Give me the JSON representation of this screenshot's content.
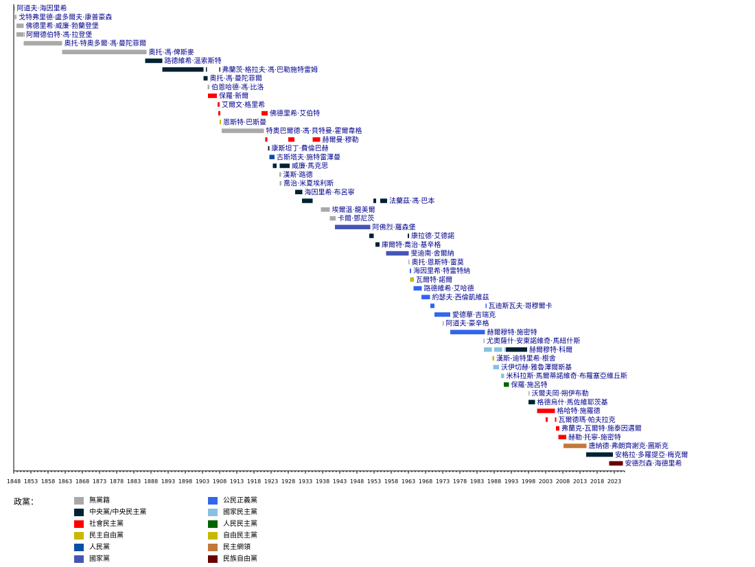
{
  "legend_title": "政黨：",
  "parties": {
    "none": {
      "label": "無黨籍",
      "color": "#a9a9a9"
    },
    "cen": {
      "label": "中央黨/中央民主黨",
      "color": "#002233"
    },
    "sp": {
      "label": "社會民主黨",
      "color": "#ff0000"
    },
    "dfp": {
      "label": "民主自由黨",
      "color": "#c8b900"
    },
    "volk": {
      "label": "人民黨",
      "color": "#0a4fa3"
    },
    "nat": {
      "label": "國家黨",
      "color": "#4655b5"
    },
    "cvp": {
      "label": "公民正義黨",
      "color": "#3366ee"
    },
    "bdp": {
      "label": "國家民主黨",
      "color": "#87c1e3"
    },
    "vp": {
      "label": "人民民主黨",
      "color": "#006400"
    },
    "fdp": {
      "label": "自由民主黨",
      "color": "#c8b900"
    },
    "du": {
      "label": "民主網領",
      "color": "#c1783b"
    },
    "dpl": {
      "label": "民族自由黨",
      "color": "#6b0000"
    }
  },
  "legend_order": [
    "none",
    "cen",
    "sp",
    "dfp",
    "volk",
    "nat",
    "cvp",
    "bdp",
    "vp",
    "fdp",
    "du",
    "dpl"
  ],
  "chart_data": {
    "type": "timeline",
    "x_axis": {
      "min": 1848,
      "max": 2026,
      "tick_start": 1848,
      "tick_step": 5,
      "tick_end": 2023
    },
    "rows": [
      {
        "label": "阿道夫·海因里希",
        "segments": [
          {
            "start": 1848,
            "end": 1848.3,
            "party": "none"
          }
        ]
      },
      {
        "label": "戈特弗里德·盧多爾夫·康普豪森",
        "segments": [
          {
            "start": 1848.3,
            "end": 1848.8,
            "party": "none"
          }
        ]
      },
      {
        "label": "佛德里希·威廉·勃蘭登堡",
        "segments": [
          {
            "start": 1848.8,
            "end": 1850.9,
            "party": "none"
          }
        ]
      },
      {
        "label": "阿爾德伯特·馮·拉登堡",
        "segments": [
          {
            "start": 1850.9,
            "end": 1851,
            "party": "none"
          },
          {
            "start": 1848.8,
            "end": 1850.8,
            "party": "none"
          }
        ]
      },
      {
        "label": "奧托·特奧多爾·馮·曼陀菲爾",
        "segments": [
          {
            "start": 1850.9,
            "end": 1862.1,
            "party": "none"
          }
        ]
      },
      {
        "label": "奧托·馮·俾斯麥",
        "segments": [
          {
            "start": 1862.1,
            "end": 1886.7,
            "party": "none"
          }
        ]
      },
      {
        "label": "路德維希·溫索斯特",
        "segments": [
          {
            "start": 1886.3,
            "end": 1891.3,
            "party": "cen"
          }
        ]
      },
      {
        "label": "弗蘭茨·格拉夫·馮·巴勒施特雷姆",
        "segments": [
          {
            "start": 1891.3,
            "end": 1903.3,
            "party": "cen"
          },
          {
            "start": 1904.0,
            "end": 1904.2,
            "party": "cen"
          },
          {
            "start": 1907.9,
            "end": 1908.1,
            "party": "cen"
          }
        ]
      },
      {
        "label": "奧托·馮·曼陀菲爾",
        "segments": [
          {
            "start": 1903.3,
            "end": 1904.5,
            "party": "cen"
          }
        ]
      },
      {
        "label": "伯恩哈德·馮·比洛",
        "segments": [
          {
            "start": 1904.5,
            "end": 1905.0,
            "party": "none"
          }
        ]
      },
      {
        "label": "保羅·新爾",
        "segments": [
          {
            "start": 1904.6,
            "end": 1907.2,
            "party": "sp"
          }
        ]
      },
      {
        "label": "艾爾文·格里希",
        "segments": [
          {
            "start": 1907.4,
            "end": 1908.0,
            "party": "sp"
          }
        ]
      },
      {
        "label": "佛德里希·艾伯特",
        "segments": [
          {
            "start": 1907.6,
            "end": 1908.2,
            "party": "sp"
          },
          {
            "start": 1920.2,
            "end": 1922.0,
            "party": "sp"
          }
        ]
      },
      {
        "label": "恩斯特·巴斯曼",
        "segments": [
          {
            "start": 1908.0,
            "end": 1908.4,
            "party": "dfp"
          }
        ]
      },
      {
        "label": "特奧巴爾德·馮·貝特曼-霍爾韋格",
        "segments": [
          {
            "start": 1908.6,
            "end": 1920.9,
            "party": "none"
          }
        ]
      },
      {
        "label": "赫爾曼·穆勒",
        "segments": [
          {
            "start": 1921.3,
            "end": 1921.9,
            "party": "sp"
          },
          {
            "start": 1928.0,
            "end": 1929.8,
            "party": "sp"
          },
          {
            "start": 1935.1,
            "end": 1937.3,
            "party": "sp"
          }
        ]
      },
      {
        "label": "康斯坦丁·費倫巴赫",
        "segments": [
          {
            "start": 1922.1,
            "end": 1922.5,
            "party": "cen"
          }
        ]
      },
      {
        "label": "古斯塔夫·施特雷澤曼",
        "segments": [
          {
            "start": 1922.5,
            "end": 1924.0,
            "party": "volk"
          }
        ]
      },
      {
        "label": "威廉·馬克思",
        "segments": [
          {
            "start": 1923.5,
            "end": 1924.6,
            "party": "cen"
          },
          {
            "start": 1925.5,
            "end": 1928.4,
            "party": "cen"
          }
        ]
      },
      {
        "label": "漢斯·路德",
        "segments": [
          {
            "start": 1925.4,
            "end": 1925.9,
            "party": "none"
          }
        ]
      },
      {
        "label": "喬治·米夏埃利斯",
        "segments": [
          {
            "start": 1925.5,
            "end": 1926.0,
            "party": "none"
          }
        ]
      },
      {
        "label": "海因里希·布呂寧",
        "segments": [
          {
            "start": 1930.0,
            "end": 1932.1,
            "party": "cen"
          }
        ]
      },
      {
        "label": "法蘭茲·馮·巴本",
        "segments": [
          {
            "start": 1932.0,
            "end": 1935.1,
            "party": "cen"
          },
          {
            "start": 1952.8,
            "end": 1953.6,
            "party": "cen"
          },
          {
            "start": 1954.8,
            "end": 1956.8,
            "party": "cen"
          }
        ]
      },
      {
        "label": "埃爾溫·龍美爾",
        "segments": [
          {
            "start": 1937.5,
            "end": 1940.1,
            "party": "none"
          }
        ]
      },
      {
        "label": "卡爾·鄧尼茨",
        "segments": [
          {
            "start": 1940.1,
            "end": 1941.8,
            "party": "none"
          }
        ]
      },
      {
        "label": "阿佛烈·羅森堡",
        "segments": [
          {
            "start": 1941.6,
            "end": 1951.9,
            "party": "nat"
          }
        ]
      },
      {
        "label": "康拉德·艾德諾",
        "segments": [
          {
            "start": 1951.6,
            "end": 1952.9,
            "party": "cen"
          },
          {
            "start": 1962.8,
            "end": 1963.2,
            "party": "cen"
          }
        ]
      },
      {
        "label": "庫爾特·喬治·基辛格",
        "segments": [
          {
            "start": 1953.4,
            "end": 1954.6,
            "party": "cen"
          }
        ]
      },
      {
        "label": "斐迪南·舍爾納",
        "segments": [
          {
            "start": 1956.5,
            "end": 1963.1,
            "party": "nat"
          }
        ]
      },
      {
        "label": "奧托·恩斯特·雷莫",
        "segments": [
          {
            "start": 1963.0,
            "end": 1963.3,
            "party": "none"
          }
        ]
      },
      {
        "label": "海因里希·特雷特納",
        "segments": [
          {
            "start": 1963.4,
            "end": 1963.8,
            "party": "cvp"
          }
        ]
      },
      {
        "label": "瓦爾特·諾爾",
        "segments": [
          {
            "start": 1963.5,
            "end": 1964.6,
            "party": "dfp"
          }
        ]
      },
      {
        "label": "路德維希·艾哈德",
        "segments": [
          {
            "start": 1964.5,
            "end": 1966.9,
            "party": "cvp"
          }
        ]
      },
      {
        "label": "約瑟夫·西倫凱維茲",
        "segments": [
          {
            "start": 1966.8,
            "end": 1969.3,
            "party": "cvp"
          }
        ]
      },
      {
        "label": "瓦迪斯瓦夫·哥穆爾卡",
        "segments": [
          {
            "start": 1969.4,
            "end": 1970.6,
            "party": "cvp"
          },
          {
            "start": 1985.5,
            "end": 1985.7,
            "party": "cvp"
          }
        ]
      },
      {
        "label": "愛德華·吉瑞克",
        "segments": [
          {
            "start": 1970.6,
            "end": 1975.2,
            "party": "cvp"
          }
        ]
      },
      {
        "label": "阿道夫·豪辛格",
        "segments": [
          {
            "start": 1973.0,
            "end": 1973.3,
            "party": "none"
          }
        ]
      },
      {
        "label": "赫爾穆特·施密特",
        "segments": [
          {
            "start": 1975.2,
            "end": 1985.3,
            "party": "cvp"
          }
        ]
      },
      {
        "label": "尤奧薩什·安東諾維奇·馬紐什斯",
        "segments": [
          {
            "start": 1984.9,
            "end": 1985.2,
            "party": "none"
          }
        ]
      },
      {
        "label": "赫爾穆特·科爾",
        "segments": [
          {
            "start": 1985.0,
            "end": 1987.3,
            "party": "bdp"
          },
          {
            "start": 1988.0,
            "end": 1990.3,
            "party": "bdp"
          },
          {
            "start": 1991.0,
            "end": 1991.3,
            "party": "bdp"
          },
          {
            "start": 1991.4,
            "end": 1997.6,
            "party": "cen"
          }
        ]
      },
      {
        "label": "漢斯-迪特里希·根舍",
        "segments": [
          {
            "start": 1987.5,
            "end": 1988.0,
            "party": "fdp"
          }
        ]
      },
      {
        "label": "沃伊切赫·雅魯澤爾斯基",
        "segments": [
          {
            "start": 1987.7,
            "end": 1989.4,
            "party": "bdp"
          }
        ]
      },
      {
        "label": "米科拉斯·馬爾蒂諾維奇·布羅塞亞維丘斯",
        "segments": [
          {
            "start": 1990.0,
            "end": 1990.9,
            "party": "bdp"
          }
        ]
      },
      {
        "label": "保羅·施呂特",
        "segments": [
          {
            "start": 1990.8,
            "end": 1992.3,
            "party": "vp"
          }
        ]
      },
      {
        "label": "沃爾夫岡·朔伊布勒",
        "segments": [
          {
            "start": 1998.0,
            "end": 1998.3,
            "party": "none"
          }
        ]
      },
      {
        "label": "格德烏什·馬佐維耶茨基",
        "segments": [
          {
            "start": 1998.0,
            "end": 1999.9,
            "party": "cen"
          }
        ]
      },
      {
        "label": "格哈特·施羅德",
        "segments": [
          {
            "start": 2000.5,
            "end": 2005.7,
            "party": "sp"
          }
        ]
      },
      {
        "label": "瓦爾德瑪·帕夫拉克",
        "segments": [
          {
            "start": 2003.0,
            "end": 2003.6,
            "party": "sp"
          },
          {
            "start": 2005.7,
            "end": 2006.1,
            "party": "sp"
          }
        ]
      },
      {
        "label": "弗蘭克-瓦爾特·施泰因邁爾",
        "segments": [
          {
            "start": 2006.0,
            "end": 2007.0,
            "party": "sp"
          }
        ]
      },
      {
        "label": "赫勒·托寧-施密特",
        "segments": [
          {
            "start": 2006.7,
            "end": 2009.0,
            "party": "sp"
          }
        ]
      },
      {
        "label": "唐納德·弗朗齊謝克·圖斯克",
        "segments": [
          {
            "start": 2008.2,
            "end": 2014.9,
            "party": "du"
          }
        ]
      },
      {
        "label": "安格拉·多羅提亞·梅克爾",
        "segments": [
          {
            "start": 2014.8,
            "end": 2022.6,
            "party": "cen"
          }
        ]
      },
      {
        "label": "安德烈森·海德里希",
        "segments": [
          {
            "start": 2021.5,
            "end": 2025.5,
            "party": "dpl"
          }
        ]
      }
    ]
  }
}
